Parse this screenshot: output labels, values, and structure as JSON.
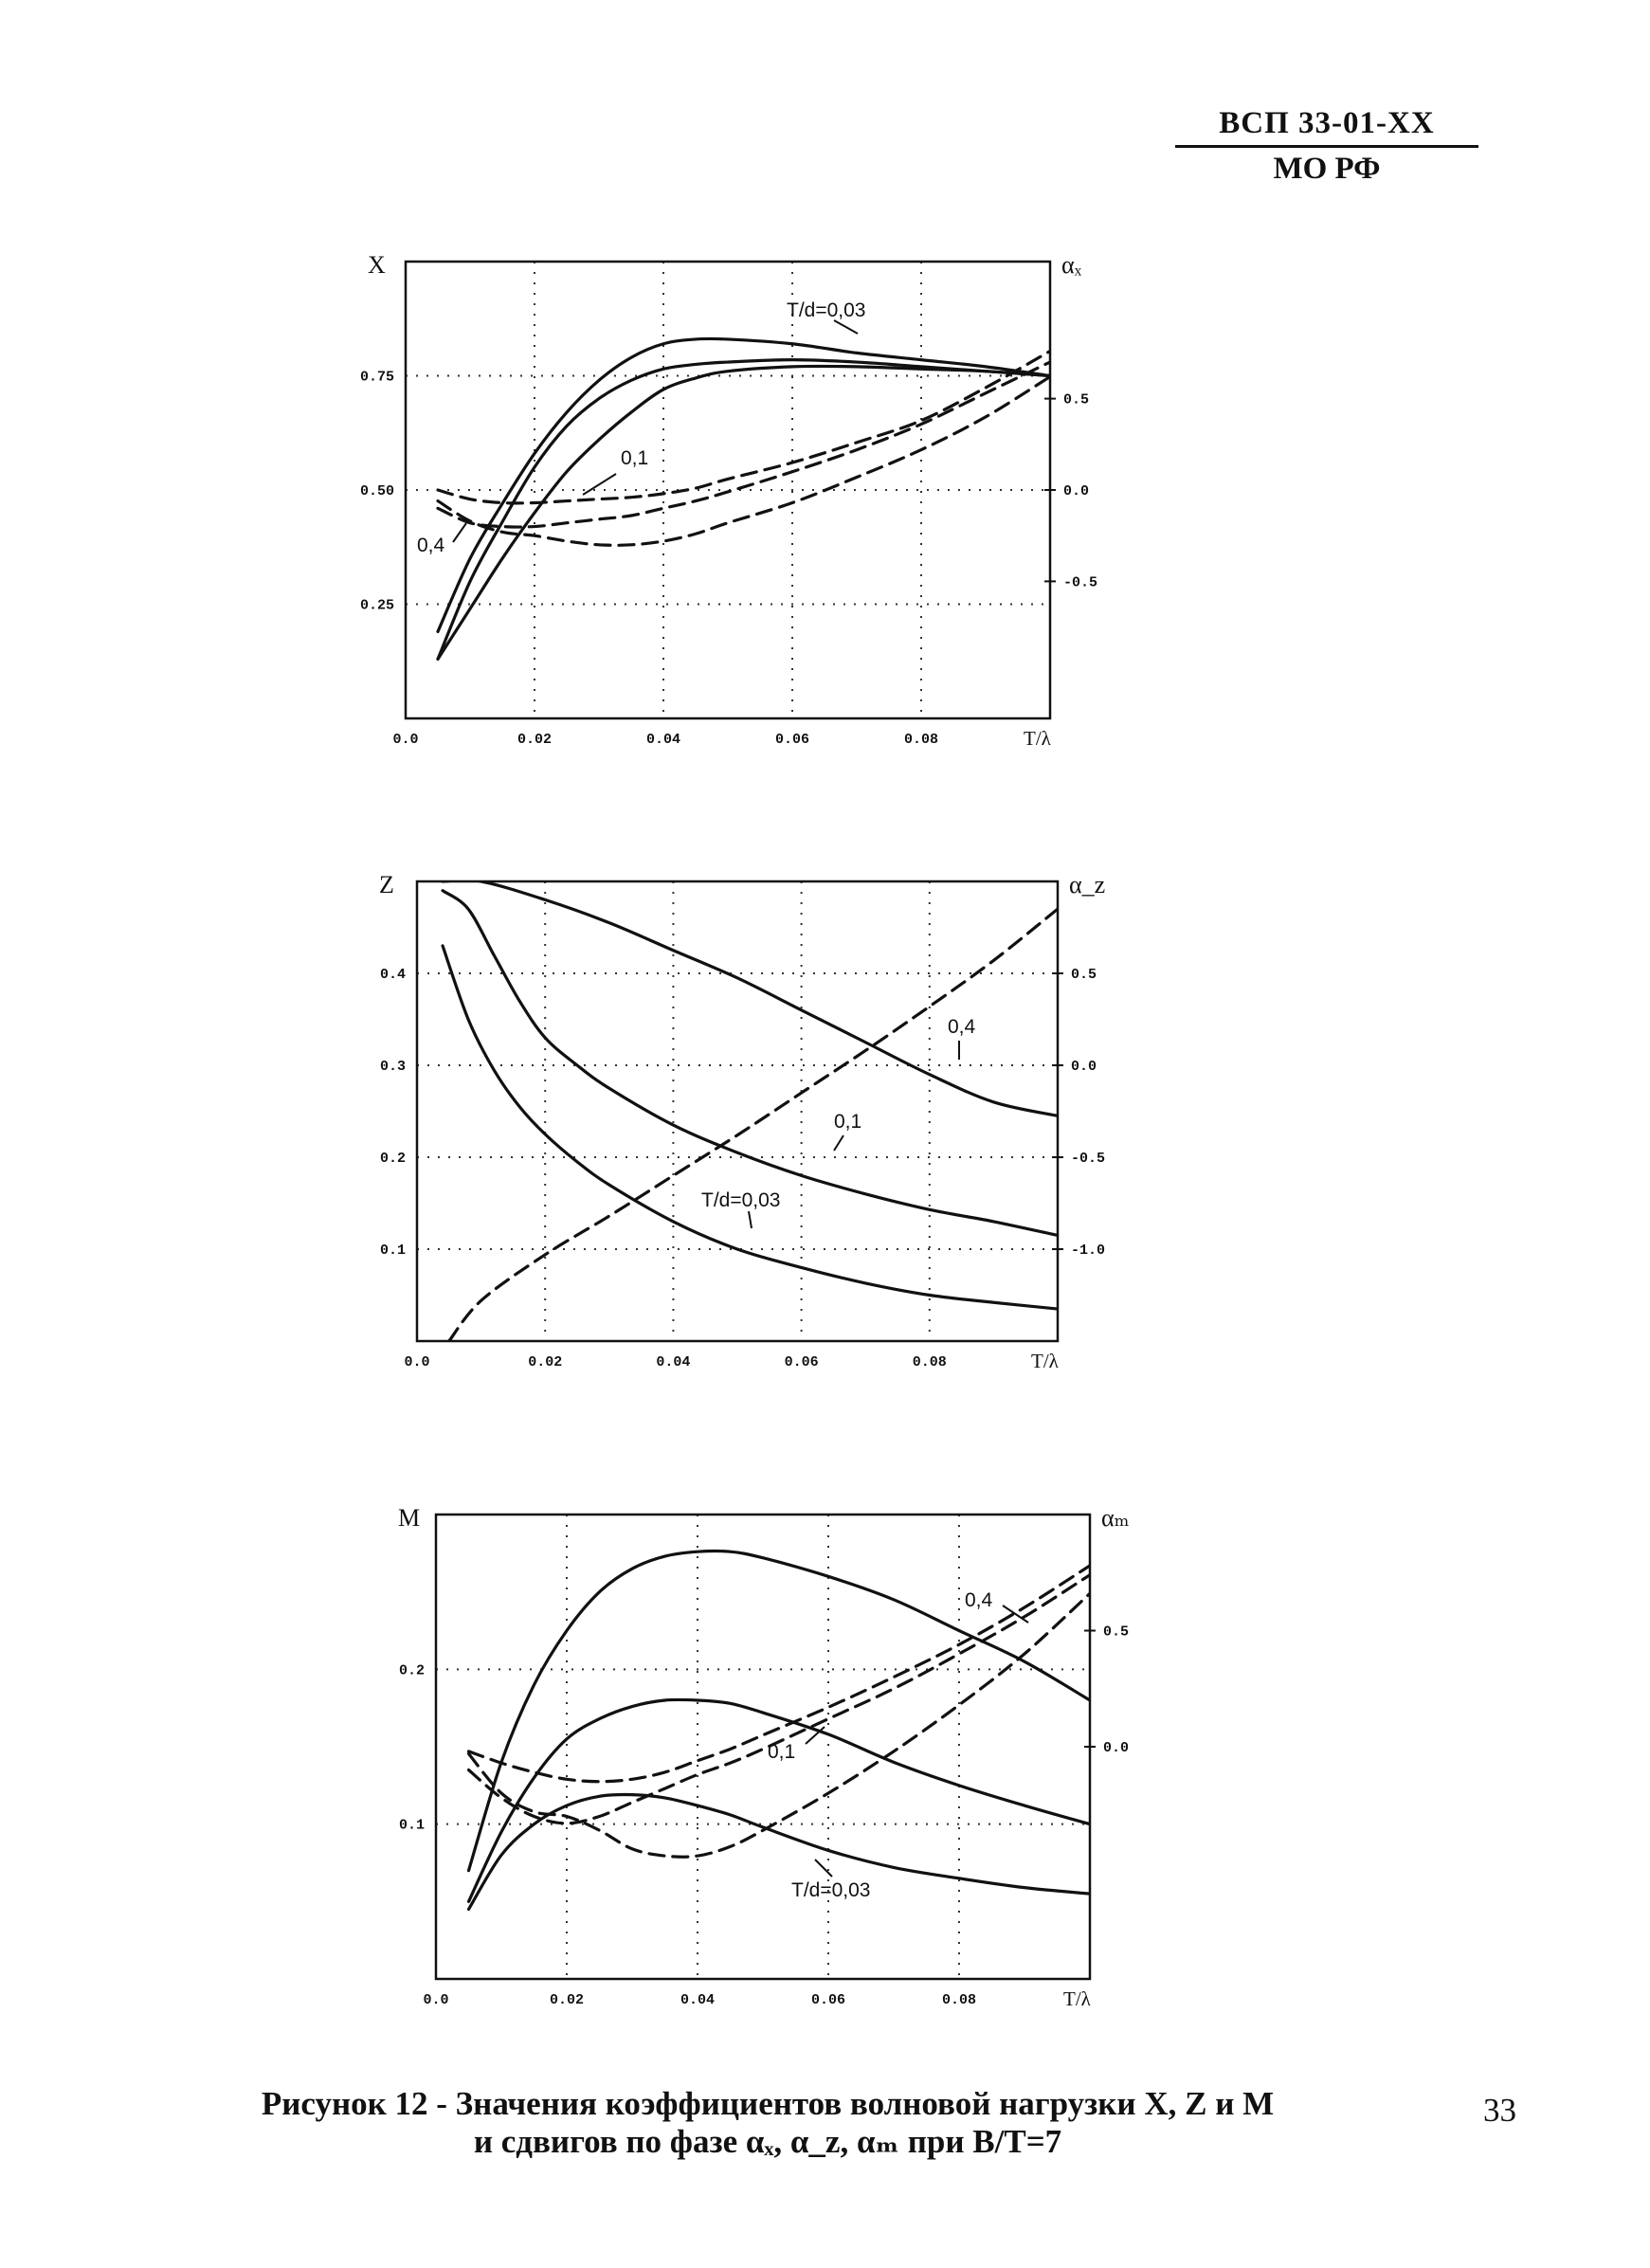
{
  "header": {
    "code_top": "ВСП 33-01-ХХ",
    "code_bottom": "МО РФ"
  },
  "caption": {
    "line1": "Рисунок 12 - Значения коэффициентов волновой нагрузки X, Z и M",
    "line2": "и сдвигов по фазе αₓ, α_z, αₘ при B/T=7"
  },
  "page_number": "33",
  "chart_data": [
    {
      "type": "line",
      "ylabel": "X",
      "y2label": "αₓ",
      "xlabel": "T/λ",
      "xlim": [
        0.0,
        0.1
      ],
      "ylim": [
        0.0,
        1.0
      ],
      "y2lim": [
        -1.25,
        1.25
      ],
      "x_ticks": [
        "0.0",
        "0.02",
        "0.04",
        "0.06",
        "0.08"
      ],
      "x_tick_values": [
        0,
        0.02,
        0.04,
        0.06,
        0.08
      ],
      "y_ticks": [
        "0.75",
        "0.50",
        "0.25"
      ],
      "y_tick_values": [
        0.75,
        0.5,
        0.25
      ],
      "y2_ticks": [
        "0.5",
        "0.0",
        "-0.5"
      ],
      "y2_tick_values": [
        0.5,
        0.0,
        -0.5
      ],
      "grid": "dotted",
      "series": [
        {
          "name": "T/d=0,03",
          "style": "solid",
          "axis": "left",
          "x": [
            0.005,
            0.01,
            0.015,
            0.02,
            0.025,
            0.03,
            0.035,
            0.04,
            0.045,
            0.05,
            0.06,
            0.07,
            0.08,
            0.09,
            0.1
          ],
          "y": [
            0.19,
            0.35,
            0.47,
            0.58,
            0.67,
            0.74,
            0.79,
            0.82,
            0.83,
            0.83,
            0.82,
            0.8,
            0.785,
            0.77,
            0.75
          ]
        },
        {
          "name": "0,1",
          "style": "solid",
          "axis": "left",
          "x": [
            0.005,
            0.01,
            0.015,
            0.02,
            0.025,
            0.03,
            0.035,
            0.04,
            0.045,
            0.05,
            0.06,
            0.07,
            0.08,
            0.09,
            0.1
          ],
          "y": [
            0.13,
            0.3,
            0.43,
            0.55,
            0.64,
            0.7,
            0.74,
            0.765,
            0.775,
            0.78,
            0.785,
            0.78,
            0.77,
            0.76,
            0.75
          ]
        },
        {
          "name": "0,4",
          "style": "solid",
          "axis": "left",
          "x": [
            0.005,
            0.01,
            0.015,
            0.02,
            0.025,
            0.03,
            0.035,
            0.04,
            0.045,
            0.05,
            0.06,
            0.07,
            0.08,
            0.09,
            0.1
          ],
          "y": [
            0.13,
            0.24,
            0.35,
            0.45,
            0.54,
            0.61,
            0.67,
            0.72,
            0.745,
            0.76,
            0.77,
            0.77,
            0.765,
            0.76,
            0.75
          ]
        },
        {
          "name": "T/d=0,03",
          "style": "dashed",
          "axis": "right",
          "x": [
            0.005,
            0.01,
            0.015,
            0.02,
            0.025,
            0.03,
            0.035,
            0.04,
            0.045,
            0.05,
            0.06,
            0.07,
            0.08,
            0.09,
            0.1
          ],
          "y2": [
            0.0,
            -0.05,
            -0.07,
            -0.07,
            -0.06,
            -0.05,
            -0.04,
            -0.02,
            0.01,
            0.06,
            0.15,
            0.26,
            0.38,
            0.56,
            0.76
          ]
        },
        {
          "name": "0,1",
          "style": "dashed",
          "axis": "right",
          "x": [
            0.005,
            0.01,
            0.015,
            0.02,
            0.025,
            0.03,
            0.035,
            0.04,
            0.045,
            0.05,
            0.06,
            0.07,
            0.08,
            0.09,
            0.1
          ],
          "y2": [
            -0.1,
            -0.18,
            -0.2,
            -0.2,
            -0.18,
            -0.16,
            -0.14,
            -0.1,
            -0.06,
            -0.01,
            0.1,
            0.22,
            0.36,
            0.53,
            0.7
          ]
        },
        {
          "name": "0,4",
          "style": "dashed",
          "axis": "right",
          "x": [
            0.005,
            0.01,
            0.015,
            0.02,
            0.025,
            0.03,
            0.035,
            0.04,
            0.045,
            0.05,
            0.06,
            0.07,
            0.08,
            0.09,
            0.1
          ],
          "y2": [
            -0.06,
            -0.17,
            -0.23,
            -0.25,
            -0.28,
            -0.3,
            -0.3,
            -0.28,
            -0.24,
            -0.18,
            -0.07,
            0.07,
            0.22,
            0.4,
            0.62
          ]
        }
      ],
      "annotations": [
        "T/d=0,03",
        "0,1",
        "0,4"
      ]
    },
    {
      "type": "line",
      "ylabel": "Z",
      "y2label": "α_z",
      "xlabel": "T/λ",
      "xlim": [
        0.0,
        0.1
      ],
      "ylim": [
        0.0,
        0.5
      ],
      "y2lim": [
        -1.5,
        1.0
      ],
      "x_ticks": [
        "0.0",
        "0.02",
        "0.04",
        "0.06",
        "0.08"
      ],
      "x_tick_values": [
        0,
        0.02,
        0.04,
        0.06,
        0.08
      ],
      "y_ticks": [
        "0.4",
        "0.3",
        "0.2",
        "0.1"
      ],
      "y_tick_values": [
        0.4,
        0.3,
        0.2,
        0.1
      ],
      "y2_ticks": [
        "0.5",
        "0.0",
        "-0.5",
        "-1.0"
      ],
      "y2_tick_values": [
        0.5,
        0.0,
        -0.5,
        -1.0
      ],
      "grid": "dotted",
      "series": [
        {
          "name": "0,4",
          "style": "solid",
          "axis": "left",
          "x": [
            0.004,
            0.01,
            0.02,
            0.03,
            0.04,
            0.05,
            0.06,
            0.07,
            0.08,
            0.09,
            0.1
          ],
          "y": [
            0.5,
            0.5,
            0.48,
            0.455,
            0.425,
            0.395,
            0.36,
            0.325,
            0.29,
            0.26,
            0.245
          ]
        },
        {
          "name": "0,1",
          "style": "solid",
          "axis": "left",
          "x": [
            0.004,
            0.008,
            0.012,
            0.016,
            0.02,
            0.025,
            0.03,
            0.04,
            0.05,
            0.06,
            0.07,
            0.08,
            0.09,
            0.1
          ],
          "y": [
            0.49,
            0.47,
            0.42,
            0.37,
            0.33,
            0.3,
            0.275,
            0.235,
            0.205,
            0.18,
            0.16,
            0.143,
            0.13,
            0.115
          ]
        },
        {
          "name": "T/d=0,03",
          "style": "solid",
          "axis": "left",
          "x": [
            0.004,
            0.008,
            0.012,
            0.016,
            0.02,
            0.025,
            0.03,
            0.04,
            0.05,
            0.06,
            0.07,
            0.08,
            0.09,
            0.1
          ],
          "y": [
            0.43,
            0.35,
            0.295,
            0.255,
            0.225,
            0.195,
            0.17,
            0.13,
            0.1,
            0.08,
            0.063,
            0.05,
            0.042,
            0.035
          ]
        },
        {
          "name": "",
          "style": "dashed",
          "axis": "right",
          "x": [
            0.005,
            0.01,
            0.02,
            0.03,
            0.04,
            0.05,
            0.06,
            0.07,
            0.08,
            0.09,
            0.1
          ],
          "y2": [
            -1.5,
            -1.28,
            -1.03,
            -0.82,
            -0.6,
            -0.38,
            -0.15,
            0.08,
            0.32,
            0.57,
            0.85
          ]
        }
      ],
      "annotations": [
        "0,4",
        "0,1",
        "T/d=0,03"
      ]
    },
    {
      "type": "line",
      "ylabel": "M",
      "y2label": "αₘ",
      "xlabel": "T/λ",
      "xlim": [
        0.0,
        0.1
      ],
      "ylim": [
        0.0,
        0.3
      ],
      "y2lim": [
        -1.0,
        1.0
      ],
      "x_ticks": [
        "0.0",
        "0.02",
        "0.04",
        "0.06",
        "0.08"
      ],
      "x_tick_values": [
        0,
        0.02,
        0.04,
        0.06,
        0.08
      ],
      "y_ticks": [
        "0.2",
        "0.1"
      ],
      "y_tick_values": [
        0.2,
        0.1
      ],
      "y2_ticks": [
        "0.5",
        "0.0"
      ],
      "y2_tick_values": [
        0.5,
        0.0
      ],
      "grid": "dotted",
      "series": [
        {
          "name": "0,4",
          "style": "solid",
          "axis": "left",
          "x": [
            0.005,
            0.01,
            0.015,
            0.02,
            0.025,
            0.03,
            0.035,
            0.04,
            0.045,
            0.05,
            0.06,
            0.07,
            0.08,
            0.09,
            0.1
          ],
          "y": [
            0.07,
            0.14,
            0.19,
            0.225,
            0.25,
            0.265,
            0.273,
            0.276,
            0.276,
            0.272,
            0.26,
            0.245,
            0.225,
            0.205,
            0.18
          ]
        },
        {
          "name": "0,1",
          "style": "solid",
          "axis": "left",
          "x": [
            0.005,
            0.01,
            0.015,
            0.02,
            0.025,
            0.03,
            0.035,
            0.04,
            0.045,
            0.05,
            0.06,
            0.07,
            0.08,
            0.09,
            0.1
          ],
          "y": [
            0.05,
            0.095,
            0.13,
            0.155,
            0.168,
            0.176,
            0.18,
            0.18,
            0.178,
            0.172,
            0.158,
            0.14,
            0.125,
            0.112,
            0.1
          ]
        },
        {
          "name": "T/d=0,03",
          "style": "solid",
          "axis": "left",
          "x": [
            0.005,
            0.01,
            0.015,
            0.02,
            0.025,
            0.03,
            0.035,
            0.04,
            0.045,
            0.05,
            0.06,
            0.07,
            0.08,
            0.09,
            0.1
          ],
          "y": [
            0.045,
            0.08,
            0.1,
            0.112,
            0.118,
            0.119,
            0.117,
            0.112,
            0.106,
            0.098,
            0.083,
            0.072,
            0.065,
            0.059,
            0.055
          ]
        },
        {
          "name": "0,4",
          "style": "dashed",
          "axis": "right",
          "x": [
            0.005,
            0.01,
            0.015,
            0.02,
            0.025,
            0.03,
            0.035,
            0.04,
            0.045,
            0.05,
            0.06,
            0.07,
            0.08,
            0.09,
            0.1
          ],
          "y2": [
            -0.02,
            -0.07,
            -0.11,
            -0.14,
            -0.15,
            -0.14,
            -0.11,
            -0.06,
            -0.01,
            0.05,
            0.17,
            0.3,
            0.44,
            0.6,
            0.78
          ]
        },
        {
          "name": "0,1",
          "style": "dashed",
          "axis": "right",
          "x": [
            0.005,
            0.01,
            0.015,
            0.02,
            0.025,
            0.03,
            0.035,
            0.04,
            0.045,
            0.05,
            0.06,
            0.07,
            0.08,
            0.09,
            0.1
          ],
          "y2": [
            -0.1,
            -0.22,
            -0.3,
            -0.33,
            -0.3,
            -0.24,
            -0.18,
            -0.12,
            -0.07,
            -0.01,
            0.12,
            0.25,
            0.4,
            0.56,
            0.74
          ]
        },
        {
          "name": "T/d=0,03",
          "style": "dashed",
          "axis": "right",
          "x": [
            0.005,
            0.01,
            0.015,
            0.02,
            0.025,
            0.03,
            0.035,
            0.04,
            0.045,
            0.05,
            0.06,
            0.07,
            0.08,
            0.09,
            0.1
          ],
          "y2": [
            -0.03,
            -0.2,
            -0.28,
            -0.3,
            -0.36,
            -0.44,
            -0.47,
            -0.47,
            -0.43,
            -0.36,
            -0.2,
            -0.02,
            0.18,
            0.4,
            0.66
          ]
        }
      ],
      "annotations": [
        "0,4",
        "0,1",
        "T/d=0,03"
      ]
    }
  ]
}
